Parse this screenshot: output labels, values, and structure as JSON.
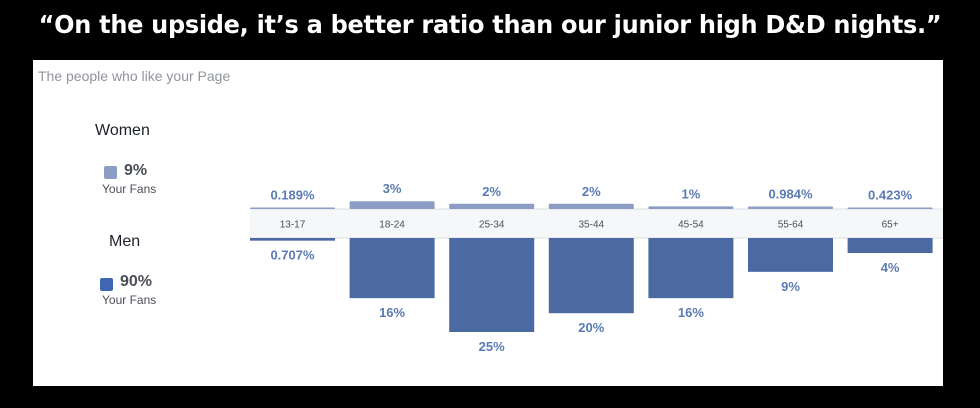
{
  "caption": "“On the upside, it’s a better ratio than our junior high D&D nights.”",
  "panel": {
    "title": "The people who like your Page"
  },
  "legend": {
    "women": {
      "label": "Women",
      "percent": "9%",
      "sub": "Your Fans",
      "color": "#8b9dc3"
    },
    "men": {
      "label": "Men",
      "percent": "90%",
      "sub": "Your Fans",
      "color": "#4267b2"
    }
  },
  "colors": {
    "women_bar": "#8b9dc3",
    "men_bar": "#4a6aa1",
    "label_text": "#5b7bb4",
    "band": "#f6f7f9"
  },
  "chart_data": {
    "type": "bar",
    "categories": [
      "13-17",
      "18-24",
      "25-34",
      "35-44",
      "45-54",
      "55-64",
      "65+"
    ],
    "series": [
      {
        "name": "Women",
        "values": [
          0.189,
          3,
          2,
          2,
          1,
          0.984,
          0.423
        ],
        "labels": [
          "0.189%",
          "3%",
          "2%",
          "2%",
          "1%",
          "0.984%",
          "0.423%"
        ]
      },
      {
        "name": "Men",
        "values": [
          0.707,
          16,
          25,
          20,
          16,
          9,
          4
        ],
        "labels": [
          "0.707%",
          "16%",
          "25%",
          "20%",
          "16%",
          "9%",
          "4%"
        ]
      }
    ],
    "ylim": [
      0,
      25
    ]
  }
}
